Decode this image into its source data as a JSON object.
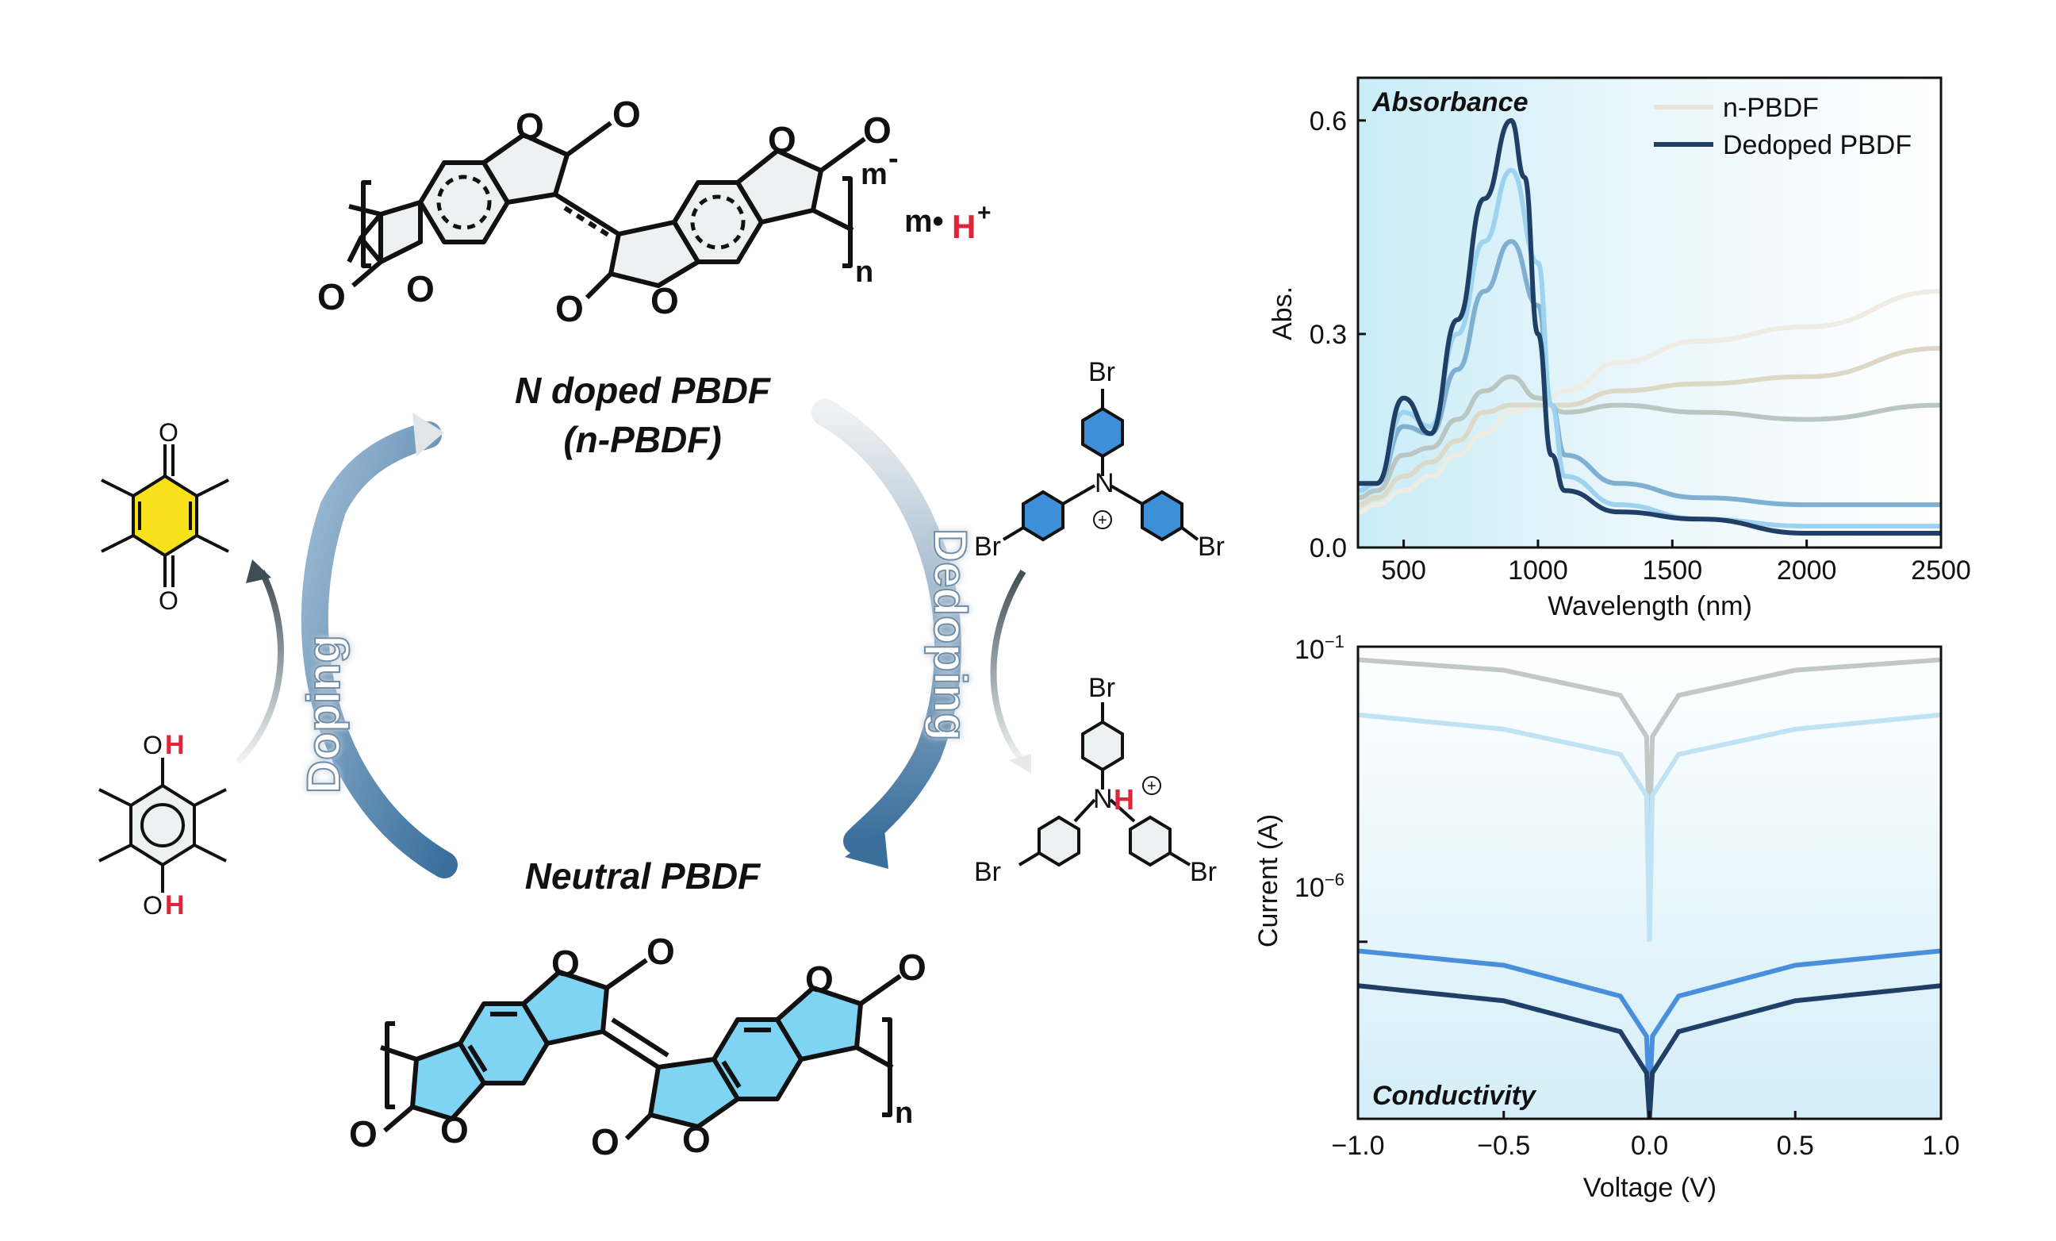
{
  "cycle": {
    "top_label_line1": "N doped PBDF",
    "top_label_line2": "(n-PBDF)",
    "bottom_label": "Neutral PBDF",
    "doping": "Doping",
    "dedoping": "Dedoping"
  },
  "structures": {
    "oxygen": "O",
    "carbonyl_o": "O",
    "repeat_n": "n",
    "repeat_m": "m",
    "charge_minus": "-",
    "counter_ion_prefix": "m•",
    "proton": "H",
    "plus": "+",
    "bromine": "Br",
    "nitrogen": "N",
    "hydroxyl_o": "O",
    "hydroxyl_h": "H",
    "ring_plus": "+"
  },
  "colors": {
    "neutral_fill": "#7fd3f3",
    "quinone_fill": "#f7e11a",
    "amine_fill": "#3d8fd8",
    "highlight_h": "#e0243a",
    "arrow_blue": "#3a6f9c"
  },
  "absorbance": {
    "corner_label": "Absorbance",
    "xlabel": "Wavelength (nm)",
    "ylabel": "Abs.",
    "xticks": [
      "500",
      "1000",
      "1500",
      "2000",
      "2500"
    ],
    "yticks": [
      "0.0",
      "0.3",
      "0.6"
    ],
    "legend": [
      {
        "name": "n-PBDF",
        "color": "#e7e4d6"
      },
      {
        "name": "Dedoped PBDF",
        "color": "#1f3f66"
      }
    ]
  },
  "conductivity": {
    "corner_label": "Conductivity",
    "xlabel": "Voltage (V)",
    "ylabel": "Current (A)",
    "xticks": [
      "−1.0",
      "−0.5",
      "0.0",
      "0.5",
      "1.0"
    ],
    "ytick_top": "10",
    "ytick_top_exp": "−1",
    "ytick_mid": "10",
    "ytick_mid_exp": "−6"
  },
  "chart_data": [
    {
      "type": "line",
      "title": "Absorbance",
      "xlabel": "Wavelength (nm)",
      "ylabel": "Abs.",
      "xlim": [
        330,
        2500
      ],
      "ylim": [
        0,
        0.66
      ],
      "series": [
        {
          "name": "n-PBDF",
          "color": "#efece3",
          "x": [
            330,
            400,
            500,
            600,
            700,
            800,
            900,
            1000,
            1100,
            1300,
            1600,
            2000,
            2500
          ],
          "y": [
            0.05,
            0.06,
            0.08,
            0.1,
            0.13,
            0.16,
            0.19,
            0.2,
            0.22,
            0.26,
            0.29,
            0.31,
            0.36
          ]
        },
        {
          "color": "#ddd9c6",
          "x": [
            330,
            400,
            500,
            600,
            700,
            800,
            900,
            1000,
            1100,
            1300,
            1600,
            2000,
            2500
          ],
          "y": [
            0.06,
            0.07,
            0.1,
            0.12,
            0.15,
            0.19,
            0.2,
            0.2,
            0.2,
            0.22,
            0.23,
            0.24,
            0.28
          ]
        },
        {
          "color": "#b9c6c2",
          "x": [
            330,
            400,
            500,
            600,
            700,
            800,
            900,
            1000,
            1100,
            1300,
            1600,
            2000,
            2500
          ],
          "y": [
            0.07,
            0.08,
            0.13,
            0.14,
            0.18,
            0.22,
            0.24,
            0.21,
            0.19,
            0.2,
            0.19,
            0.18,
            0.2
          ]
        },
        {
          "color": "#7fb0d1",
          "x": [
            330,
            400,
            500,
            600,
            700,
            800,
            900,
            1000,
            1050,
            1100,
            1300,
            1600,
            2000,
            2500
          ],
          "y": [
            0.08,
            0.09,
            0.17,
            0.16,
            0.25,
            0.36,
            0.43,
            0.34,
            0.2,
            0.13,
            0.09,
            0.07,
            0.06,
            0.06
          ]
        },
        {
          "color": "#9dd3ef",
          "x": [
            330,
            400,
            500,
            600,
            700,
            800,
            900,
            1000,
            1050,
            1100,
            1300,
            1600,
            2000,
            2500
          ],
          "y": [
            0.08,
            0.09,
            0.19,
            0.17,
            0.3,
            0.43,
            0.53,
            0.4,
            0.2,
            0.1,
            0.06,
            0.04,
            0.03,
            0.03
          ]
        },
        {
          "name": "Dedoped PBDF",
          "color": "#1f3f66",
          "x": [
            330,
            400,
            500,
            600,
            700,
            800,
            900,
            950,
            1000,
            1050,
            1100,
            1300,
            1600,
            2000,
            2500
          ],
          "y": [
            0.09,
            0.09,
            0.21,
            0.16,
            0.32,
            0.49,
            0.6,
            0.52,
            0.3,
            0.13,
            0.08,
            0.05,
            0.04,
            0.02,
            0.02
          ]
        }
      ]
    },
    {
      "type": "line",
      "title": "Conductivity",
      "xlabel": "Voltage (V)",
      "ylabel": "Current (A)",
      "xlim": [
        -1.0,
        1.0
      ],
      "yscale": "log",
      "ylim": [
        1e-09,
        0.1
      ],
      "series": [
        {
          "color": "#c2c8c6",
          "x": [
            -1.0,
            -0.5,
            -0.1,
            -0.01,
            0,
            0.01,
            0.1,
            0.5,
            1.0
          ],
          "y": [
            0.06,
            0.04,
            0.015,
            0.003,
            5e-05,
            0.003,
            0.015,
            0.04,
            0.06
          ]
        },
        {
          "color": "#bfe3f3",
          "x": [
            -1.0,
            -0.5,
            -0.1,
            -0.01,
            0,
            0.01,
            0.1,
            0.5,
            1.0
          ],
          "y": [
            0.007,
            0.004,
            0.0015,
            0.0003,
            1e-06,
            0.0003,
            0.0015,
            0.004,
            0.007
          ]
        },
        {
          "color": "#4a8fdb",
          "x": [
            -1.0,
            -0.5,
            -0.1,
            -0.01,
            0,
            0.01,
            0.1,
            0.5,
            1.0
          ],
          "y": [
            7e-07,
            4e-07,
            1.2e-07,
            2.5e-08,
            2e-09,
            2.5e-08,
            1.2e-07,
            4e-07,
            7e-07
          ]
        },
        {
          "color": "#1f3f66",
          "x": [
            -1.0,
            -0.5,
            -0.1,
            -0.01,
            0,
            0.01,
            0.1,
            0.5,
            1.0
          ],
          "y": [
            1.8e-07,
            1e-07,
            3e-08,
            6e-09,
            1e-09,
            6e-09,
            3e-08,
            1e-07,
            1.8e-07
          ]
        }
      ]
    }
  ]
}
